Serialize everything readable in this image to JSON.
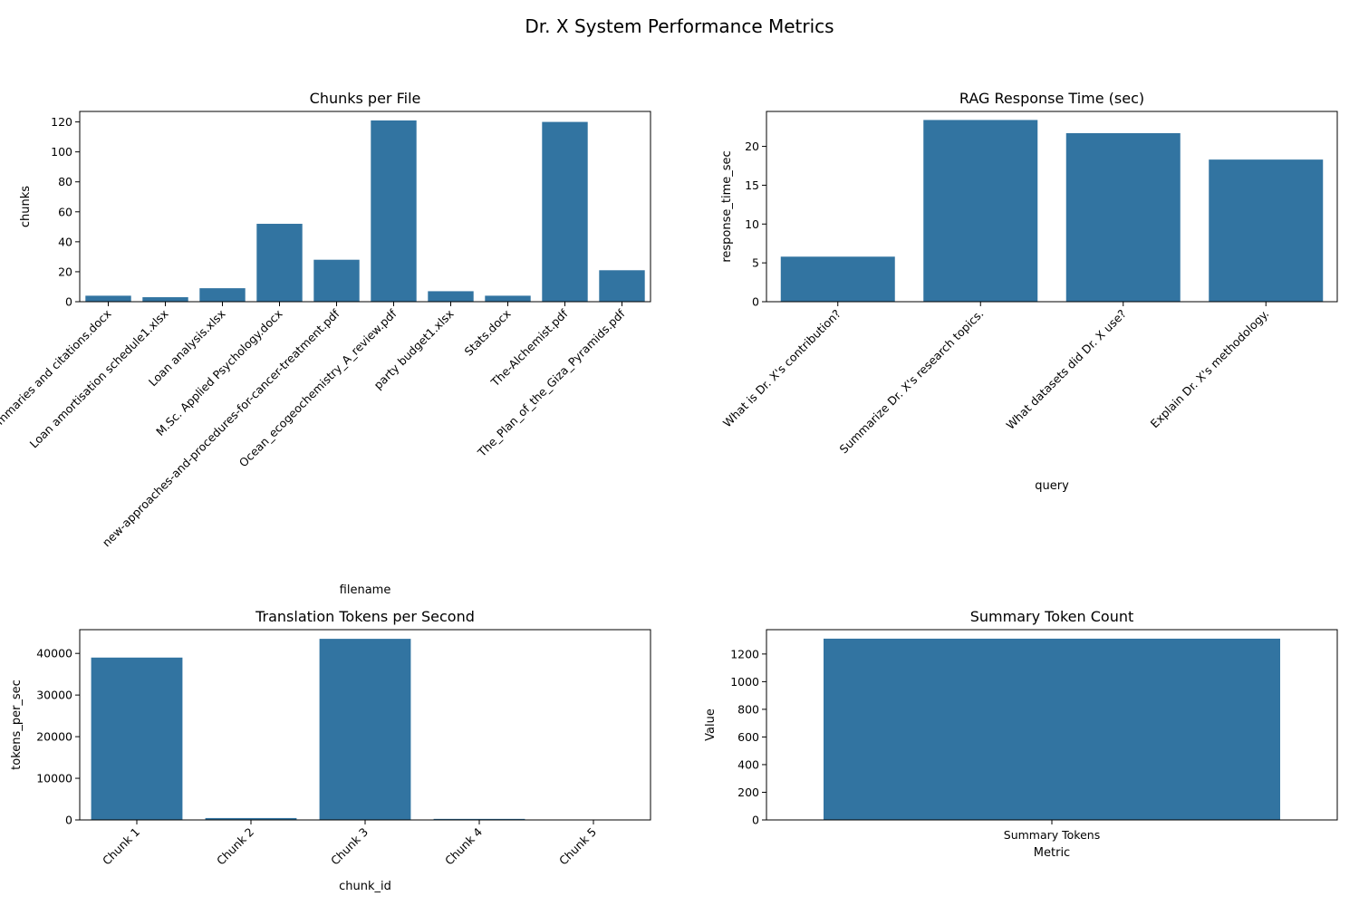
{
  "figure": {
    "title": "Dr. X System Performance Metrics"
  },
  "colors": {
    "bar": "#3274a1",
    "axis": "#000000",
    "background": "#ffffff"
  },
  "chart_data": [
    {
      "id": "chunks",
      "type": "bar",
      "title": "Chunks per File",
      "xlabel": "filename",
      "ylabel": "chunks",
      "ylim": [
        0,
        127
      ],
      "yticks": [
        0,
        20,
        40,
        60,
        80,
        100,
        120
      ],
      "tick_rotation": 45,
      "categories": [
        "Dataset summaries and citations.docx",
        "Loan amortisation schedule1.xlsx",
        "Loan analysis.xlsx",
        "M.Sc. Applied Psychology.docx",
        "new-approaches-and-procedures-for-cancer-treatment.pdf",
        "Ocean_ecogeochemistry_A_review.pdf",
        "party budget1.xlsx",
        "Stats.docx",
        "The-Alchemist.pdf",
        "The_Plan_of_the_Giza_Pyramids.pdf"
      ],
      "values": [
        4,
        3,
        9,
        52,
        28,
        121,
        7,
        4,
        120,
        21
      ]
    },
    {
      "id": "rag",
      "type": "bar",
      "title": "RAG Response Time (sec)",
      "xlabel": "query",
      "ylabel": "response_time_sec",
      "ylim": [
        0,
        24.5
      ],
      "yticks": [
        0,
        5,
        10,
        15,
        20
      ],
      "tick_rotation": 45,
      "categories": [
        "What is Dr. X's contribution?",
        "Summarize Dr. X's research topics.",
        "What datasets did Dr. X use?",
        "Explain Dr. X's methodology."
      ],
      "values": [
        5.8,
        23.4,
        21.7,
        18.3
      ]
    },
    {
      "id": "translation",
      "type": "bar",
      "title": "Translation Tokens per Second",
      "xlabel": "chunk_id",
      "ylabel": "tokens_per_sec",
      "ylim": [
        0,
        45700
      ],
      "yticks": [
        0,
        10000,
        20000,
        30000,
        40000
      ],
      "tick_rotation": 45,
      "categories": [
        "Chunk 1",
        "Chunk 2",
        "Chunk 3",
        "Chunk 4",
        "Chunk 5"
      ],
      "values": [
        39000,
        450,
        43500,
        250,
        50
      ]
    },
    {
      "id": "summary",
      "type": "bar",
      "title": "Summary Token Count",
      "xlabel": "Metric",
      "ylabel": "Value",
      "ylim": [
        0,
        1376
      ],
      "yticks": [
        0,
        200,
        400,
        600,
        800,
        1000,
        1200
      ],
      "tick_rotation": 0,
      "categories": [
        "Summary Tokens"
      ],
      "values": [
        1311
      ]
    }
  ]
}
